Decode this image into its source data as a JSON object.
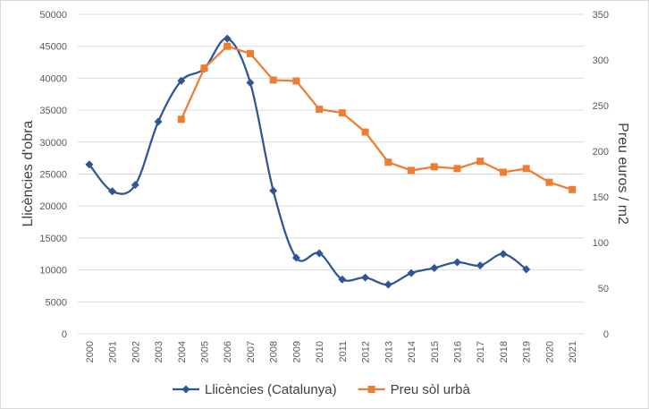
{
  "chart_data": {
    "type": "line",
    "title": "",
    "x": [
      "2000",
      "2001",
      "2002",
      "2003",
      "2004",
      "2005",
      "2006",
      "2007",
      "2008",
      "2009",
      "2010",
      "2011",
      "2012",
      "2013",
      "2014",
      "2015",
      "2016",
      "2017",
      "2018",
      "2019",
      "2020",
      "2021"
    ],
    "ylabel": "Llicències d'obra",
    "y2label": "Preu euros / m2",
    "ylim": [
      0,
      50000
    ],
    "y2lim": [
      0,
      350
    ],
    "yticks": [
      "0",
      "5000",
      "10000",
      "15000",
      "20000",
      "25000",
      "30000",
      "35000",
      "40000",
      "45000",
      "50000"
    ],
    "y2ticks": [
      "0",
      "50",
      "100",
      "150",
      "200",
      "250",
      "300",
      "350"
    ],
    "grid": true,
    "legend_position": "bottom",
    "series": [
      {
        "name": "Llicències (Catalunya)",
        "axis": "left",
        "color": "#2F5597",
        "marker": "diamond",
        "smooth": true,
        "values": [
          26500,
          22300,
          23300,
          33200,
          39600,
          41500,
          46200,
          39300,
          22400,
          11900,
          12600,
          8500,
          8800,
          7700,
          9500,
          10300,
          11200,
          10700,
          12500,
          10100,
          null,
          null
        ]
      },
      {
        "name": "Preu sòl urbà",
        "axis": "right",
        "color": "#ED7D31",
        "marker": "square",
        "smooth": false,
        "values": [
          null,
          null,
          null,
          null,
          235,
          291,
          315,
          307,
          278,
          277,
          246,
          242,
          221,
          188,
          179,
          183,
          181,
          189,
          177,
          181,
          166,
          158
        ]
      }
    ]
  }
}
